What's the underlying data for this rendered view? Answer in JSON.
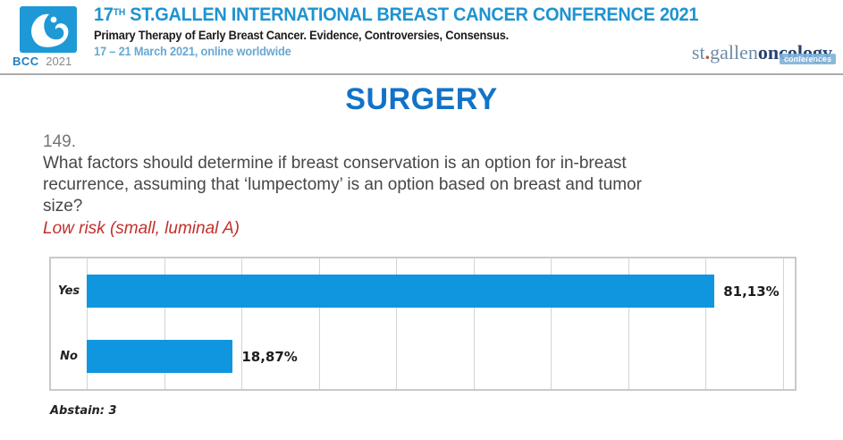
{
  "header": {
    "logo": {
      "bcc": "BCC",
      "year": "2021"
    },
    "title_num": "17",
    "title_sup": "TH",
    "title_rest": " ST.GALLEN INTERNATIONAL BREAST CANCER CONFERENCE 2021",
    "subtitle": "Primary Therapy of Early Breast Cancer. Evidence, Controversies, Consensus.",
    "dates": "17 – 21 March 2021, online worldwide",
    "right_logo": {
      "st": "st",
      "dot": ".",
      "gallen": "gallen",
      "oncology": "oncology",
      "badge": "conferences"
    }
  },
  "section_title": "SURGERY",
  "question": {
    "number": "149.",
    "text": "What factors should determine if breast conservation is an option for in-breast recurrence, assuming that ‘lumpectomy’ is an option based on breast and tumor size?",
    "highlight": "Low risk (small, luminal A)"
  },
  "chart_data": {
    "type": "bar",
    "orientation": "horizontal",
    "title": "",
    "xlabel": "",
    "ylabel": "",
    "categories": [
      "Yes",
      "No"
    ],
    "values": [
      81.13,
      18.87
    ],
    "value_labels": [
      "81,13%",
      "18,87%"
    ],
    "xlim": [
      0,
      91.5
    ],
    "gridline_step": 10,
    "grid": true,
    "legend": false
  },
  "footer": {
    "abstain": "Abstain: 3"
  },
  "colors": {
    "title_blue": "#1E93D1",
    "dates_blue": "#67A9D4",
    "logo_blue": "#1E99D6",
    "bcc_text_blue": "#1C7FC0",
    "section_blue": "#1173C8",
    "highlight_red": "#C2302B",
    "bar_blue": "#0F96DF",
    "sg_gray_blue": "#6E8CA8",
    "sg_navy": "#27416F",
    "sg_badge_blue": "#7FB2D9",
    "sg_dot_orange": "#C0552F"
  }
}
